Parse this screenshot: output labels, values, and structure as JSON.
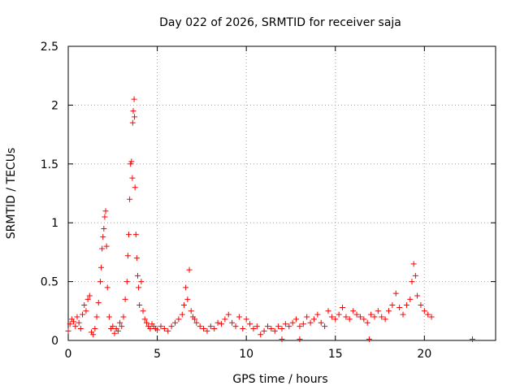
{
  "chart_data": {
    "type": "scatter",
    "title": "Day 022 of 2026, SRMTID for receiver saja",
    "xlabel": "GPS time / hours",
    "ylabel": "SRMTID / TECUs",
    "xlim": [
      0,
      24
    ],
    "ylim": [
      0,
      2.5
    ],
    "x_ticks": [
      0,
      5,
      10,
      15,
      20
    ],
    "x_tick_labels": [
      "0",
      "5",
      "10",
      "15",
      "20"
    ],
    "y_ticks": [
      0,
      0.5,
      1,
      1.5,
      2,
      2.5
    ],
    "y_tick_labels": [
      "0",
      "0.5",
      "1",
      "1.5",
      "2",
      "2.5"
    ],
    "grid": true,
    "marker": "+",
    "color": "#ff0000",
    "series": [
      {
        "name": "SRMTID",
        "x": [
          0.0,
          0.1,
          0.2,
          0.3,
          0.4,
          0.5,
          0.6,
          0.7,
          0.8,
          0.9,
          1.0,
          1.1,
          1.2,
          1.3,
          1.4,
          1.5,
          1.6,
          1.7,
          1.8,
          1.85,
          1.9,
          1.95,
          2.0,
          2.05,
          2.1,
          2.15,
          2.2,
          2.3,
          2.4,
          2.5,
          2.6,
          2.7,
          2.8,
          2.9,
          3.0,
          3.1,
          3.2,
          3.3,
          3.35,
          3.4,
          3.45,
          3.5,
          3.55,
          3.6,
          3.62,
          3.65,
          3.7,
          3.72,
          3.75,
          3.8,
          3.85,
          3.9,
          3.95,
          4.0,
          4.1,
          4.2,
          4.3,
          4.4,
          4.5,
          4.6,
          4.7,
          4.8,
          4.9,
          5.0,
          5.2,
          5.4,
          5.6,
          5.8,
          6.0,
          6.2,
          6.4,
          6.5,
          6.6,
          6.7,
          6.8,
          6.9,
          7.0,
          7.1,
          7.2,
          7.4,
          7.6,
          7.8,
          8.0,
          8.2,
          8.4,
          8.6,
          8.8,
          9.0,
          9.2,
          9.4,
          9.6,
          9.8,
          10.0,
          10.2,
          10.4,
          10.6,
          10.8,
          11.0,
          11.2,
          11.4,
          11.6,
          11.8,
          12.0,
          12.2,
          12.4,
          12.6,
          12.8,
          13.0,
          13.2,
          13.4,
          13.6,
          13.8,
          14.0,
          14.2,
          14.4,
          14.6,
          14.8,
          15.0,
          15.2,
          15.4,
          15.6,
          15.8,
          16.0,
          16.2,
          16.4,
          16.6,
          16.8,
          17.0,
          17.2,
          17.4,
          17.6,
          17.8,
          18.0,
          18.2,
          18.4,
          18.6,
          18.8,
          19.0,
          19.2,
          19.3,
          19.4,
          19.5,
          19.6,
          19.8,
          20.0,
          20.2,
          20.4,
          12.0,
          13.0,
          16.9,
          22.7
        ],
        "y": [
          0.08,
          0.14,
          0.18,
          0.16,
          0.12,
          0.2,
          0.15,
          0.1,
          0.22,
          0.3,
          0.25,
          0.35,
          0.38,
          0.07,
          0.05,
          0.1,
          0.2,
          0.32,
          0.5,
          0.62,
          0.78,
          0.88,
          0.95,
          1.05,
          1.1,
          0.8,
          0.45,
          0.2,
          0.1,
          0.12,
          0.06,
          0.1,
          0.08,
          0.15,
          0.12,
          0.2,
          0.35,
          0.5,
          0.72,
          0.9,
          1.2,
          1.5,
          1.52,
          1.38,
          1.85,
          1.95,
          2.05,
          1.9,
          1.3,
          0.9,
          0.7,
          0.55,
          0.45,
          0.3,
          0.5,
          0.25,
          0.18,
          0.15,
          0.12,
          0.1,
          0.14,
          0.12,
          0.1,
          0.09,
          0.12,
          0.1,
          0.08,
          0.12,
          0.15,
          0.18,
          0.22,
          0.3,
          0.45,
          0.35,
          0.6,
          0.25,
          0.2,
          0.18,
          0.15,
          0.12,
          0.1,
          0.08,
          0.12,
          0.1,
          0.15,
          0.14,
          0.18,
          0.22,
          0.15,
          0.12,
          0.2,
          0.1,
          0.18,
          0.14,
          0.1,
          0.12,
          0.05,
          0.08,
          0.12,
          0.1,
          0.08,
          0.12,
          0.1,
          0.14,
          0.12,
          0.15,
          0.18,
          0.12,
          0.14,
          0.2,
          0.15,
          0.18,
          0.22,
          0.15,
          0.12,
          0.25,
          0.2,
          0.18,
          0.22,
          0.28,
          0.2,
          0.18,
          0.25,
          0.22,
          0.2,
          0.18,
          0.15,
          0.22,
          0.2,
          0.25,
          0.2,
          0.18,
          0.25,
          0.3,
          0.4,
          0.28,
          0.22,
          0.3,
          0.35,
          0.5,
          0.65,
          0.55,
          0.38,
          0.3,
          0.25,
          0.22,
          0.2,
          0.01,
          0.01,
          0.01,
          0.01
        ]
      }
    ]
  }
}
